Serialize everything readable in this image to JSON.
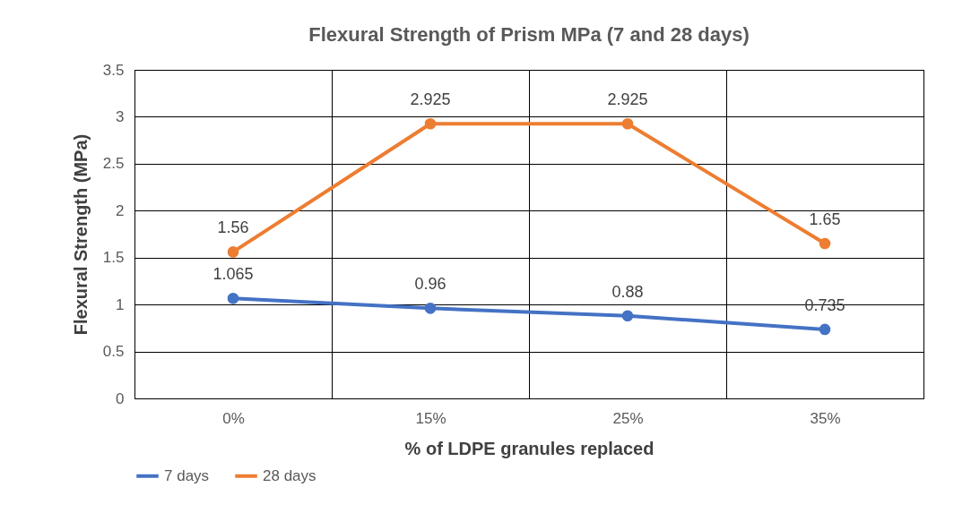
{
  "chart_data": {
    "type": "line",
    "title": "Flexural Strength of Prism MPa (7 and 28 days)",
    "xlabel": "% of LDPE granules replaced",
    "ylabel": "Flexural Strength (MPa)",
    "categories": [
      "0%",
      "15%",
      "25%",
      "35%"
    ],
    "series": [
      {
        "name": "7 days",
        "color": "#4472c4",
        "values": [
          1.065,
          0.96,
          0.88,
          0.735
        ]
      },
      {
        "name": "28 days",
        "color": "#ed7d31",
        "values": [
          1.56,
          2.925,
          2.925,
          1.65
        ]
      }
    ],
    "ylim": [
      0,
      3.5
    ],
    "yticks": [
      0,
      0.5,
      1,
      1.5,
      2,
      2.5,
      3,
      3.5
    ],
    "grid": true,
    "legend": "bottom",
    "marker": "circle",
    "data_labels": true
  }
}
